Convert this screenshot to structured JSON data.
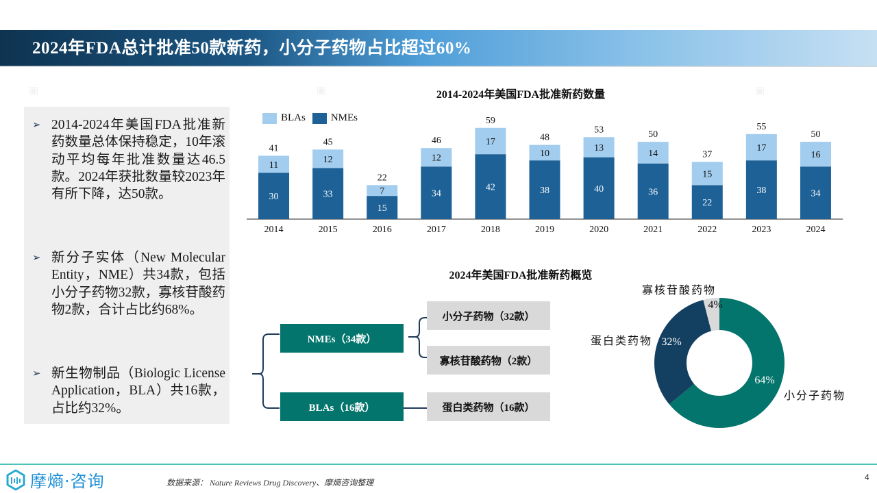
{
  "header": {
    "title": "2024年FDA总计批准50款新药，小分子药物占比超过60%"
  },
  "left_panel": {
    "bullets": [
      {
        "text": "2014-2024年美国FDA批准新药数量总体保持稳定，10年滚动平均每年批准数量达46.5款。2024年获批数量较2023年有所下降，达50款。"
      },
      {
        "text": "新分子实体（New Molecular Entity，NME）共34款，包括小分子药物32款，寡核苷酸药物2款，合计占比约68%。"
      },
      {
        "text": "新生物制品（Biologic License Application，BLA）共16款，占比约32%。"
      }
    ]
  },
  "chart_data": [
    {
      "type": "bar",
      "stacked": true,
      "title": "2014-2024年美国FDA批准新药数量",
      "categories": [
        "2014",
        "2015",
        "2016",
        "2017",
        "2018",
        "2019",
        "2020",
        "2021",
        "2022",
        "2023",
        "2024"
      ],
      "series": [
        {
          "name": "NMEs",
          "color": "#1d6196",
          "values": [
            30,
            33,
            15,
            34,
            42,
            38,
            40,
            36,
            22,
            38,
            34
          ]
        },
        {
          "name": "BLAs",
          "color": "#a3cdee",
          "values": [
            11,
            12,
            7,
            12,
            17,
            10,
            13,
            14,
            15,
            17,
            16
          ]
        }
      ],
      "totals": [
        41,
        45,
        22,
        46,
        59,
        48,
        53,
        50,
        37,
        55,
        50
      ],
      "legend": [
        "BLAs",
        "NMEs"
      ],
      "legend_position": "top-left",
      "ylim": [
        0,
        62
      ],
      "xlabel": "",
      "ylabel": ""
    },
    {
      "type": "pie",
      "donut": true,
      "title": "2024年美国FDA批准新药概览",
      "slices": [
        {
          "label": "小分子药物",
          "value": 64,
          "display": "64%",
          "color": "#03756c"
        },
        {
          "label": "蛋白类药物",
          "value": 32,
          "display": "32%",
          "color": "#133f60"
        },
        {
          "label": "寡核苷酸药物",
          "value": 4,
          "display": "4%",
          "color": "#d9d9d9"
        }
      ]
    }
  ],
  "tree": {
    "nmes": "NMEs（34款）",
    "blas": "BLAs（16款）",
    "small_molecule": "小分子药物（32款）",
    "oligo": "寡核苷酸药物（2款）",
    "protein": "蛋白类药物（16款）"
  },
  "footer": {
    "logo_text": "摩熵·咨询",
    "source": "数据来源： Nature Reviews Drug Discovery、摩熵咨询整理",
    "page_number": "4"
  }
}
